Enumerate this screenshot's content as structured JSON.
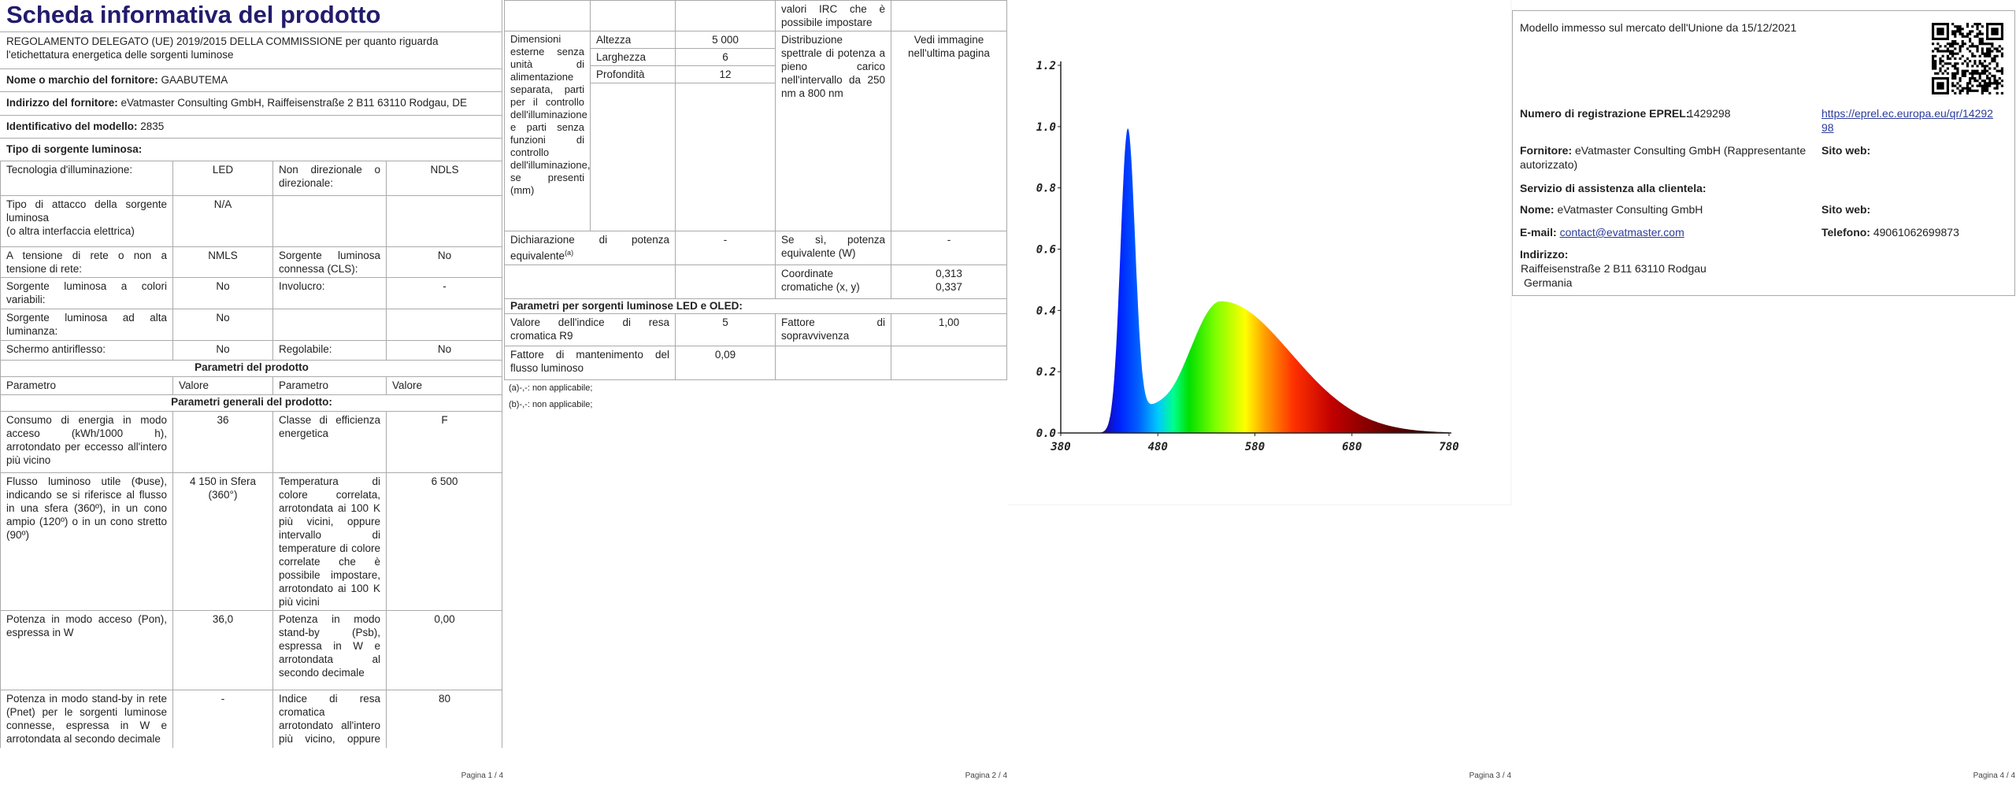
{
  "page1": {
    "title": "Scheda informativa del prodotto",
    "regulation": "REGOLAMENTO DELEGATO (UE) 2019/2015 DELLA COMMISSIONE per quanto riguarda l'etichettatura energetica delle sorgenti luminose",
    "supplier_name": {
      "label": "Nome o marchio del fornitore:",
      "value": "GAABUTEMA"
    },
    "supplier_address": {
      "label": "Indirizzo del fornitore:",
      "value": "eVatmaster Consulting GmbH, Raiffeisenstraße 2 B11 63110 Rodgau, DE"
    },
    "model": {
      "label": "Identificativo del modello:",
      "value": "2835"
    },
    "source_type": "Tipo di sorgente luminosa:",
    "features": [
      [
        "Tecnologia d'illuminazione:",
        "LED",
        "Non direzionale o direzionale:",
        "NDLS"
      ],
      [
        "Tipo di attacco della sorgente luminosa\n(o altra interfaccia elettrica)",
        "N/A",
        null,
        null
      ],
      [
        "A tensione di rete o non a tensione di rete:",
        "NMLS",
        "Sorgente luminosa connessa (CLS):",
        "No"
      ],
      [
        "Sorgente luminosa a colori variabili:",
        "No",
        "Involucro:",
        "-"
      ],
      [
        "Sorgente luminosa ad alta luminanza:",
        "No",
        null,
        null
      ],
      [
        "Schermo antiriflesso:",
        "No",
        "Regolabile:",
        "No"
      ]
    ],
    "parameters": {
      "title": "Parametri del prodotto",
      "header": [
        "Parametro",
        "Valore",
        "Parametro",
        "Valore"
      ],
      "general": "Parametri generali del prodotto:",
      "rows": [
        [
          "Consumo di energia in modo acceso (kWh/1000 h), arrotondato per eccesso all'intero più vicino",
          "36",
          "Classe di efficienza energetica",
          "F"
        ],
        [
          "Flusso luminoso utile (Φuse), indicando se si riferisce al flusso in una sfera (360º), in un cono ampio (120º) o in un cono stretto (90º)",
          "4 150 in Sfera (360°)",
          "Temperatura di colore correlata, arrotondata ai 100 K più vicini, oppure intervallo di temperature di colore correlate che è possibile impostare, arrotondato ai 100 K più vicini",
          "6 500"
        ],
        [
          "Potenza in modo acceso (Pon), espressa in W",
          "36,0",
          "Potenza in modo stand-by (Psb), espressa in W e arrotondata al secondo decimale",
          "0,00"
        ],
        [
          "Potenza in modo stand-by in rete (Pnet) per le sorgenti luminose connesse, espressa in W e arrotondata al secondo decimale",
          "-",
          "Indice di resa cromatica arrotondato all'intero più vicino, oppure intervallo di",
          "80"
        ]
      ]
    },
    "footer": "Pagina 1 / 4"
  },
  "page2": {
    "top_note": "valori IRC che è possibile impostare",
    "dimensions": {
      "label": "Dimensioni esterne senza unità di alimentazione separata, parti per il controllo dell'illuminazione e parti senza funzioni di controllo dell'illuminazione, se presenti (mm)",
      "items": [
        {
          "name": "Altezza",
          "value": "5 000"
        },
        {
          "name": "Larghezza",
          "value": "6"
        },
        {
          "name": "Profondità",
          "value": "12"
        }
      ]
    },
    "spectral": {
      "label": "Distribuzione spettrale di potenza a pieno carico nell'intervallo da 250 nm a 800 nm",
      "value": "Vedi immagine nell'ultima pagina"
    },
    "equivalent": {
      "label": "Dichiarazione di potenza equivalente",
      "note": "(a)",
      "value": "-",
      "label2": "Se sì, potenza equivalente (W)",
      "value2": "-"
    },
    "chromaticity": {
      "label": "Coordinate cromatiche (x, y)",
      "x": "0,313",
      "y": "0,337"
    },
    "led_section": "Parametri per sorgenti luminose LED e OLED:",
    "r9": {
      "label": "Valore dell'indice di resa cromatica R9",
      "value": "5"
    },
    "survival": {
      "label": "Fattore di sopravvivenza",
      "value": "1,00"
    },
    "maintenance": {
      "label": "Fattore di mantenimento del flusso luminoso",
      "value": "0,09"
    },
    "notes": [
      "(a)-,-: non applicabile;",
      "(b)-,-: non applicabile;"
    ],
    "footer": "Pagina 2 / 4"
  },
  "page3": {
    "y_labels": [
      "0.0",
      "0.2",
      "0.4",
      "0.6",
      "0.8",
      "1.0",
      "1.2"
    ],
    "x_labels": [
      "380",
      "480",
      "580",
      "680",
      "780"
    ],
    "footer": "Pagina 3 / 4"
  },
  "page4": {
    "market_date": "Modello immesso sul mercato dell'Unione da 15/12/2021",
    "eprel": {
      "label": "Numero di registrazione EPREL:",
      "value": "1429298",
      "link": "https://eprel.ec.europa.eu/qr/1429298"
    },
    "supplier": {
      "label": "Fornitore:",
      "value": "eVatmaster Consulting GmbH (Rappresentante autorizzato)",
      "web_label": "Sito web:"
    },
    "service": "Servizio di assistenza alla clientela:",
    "contact_name": {
      "label": "Nome:",
      "value": "eVatmaster Consulting GmbH",
      "web_label": "Sito web:"
    },
    "email": {
      "label": "E-mail:",
      "value": "contact@evatmaster.com"
    },
    "phone": {
      "label": "Telefono:",
      "value": "49061062699873"
    },
    "address": {
      "label": "Indirizzo:",
      "lines": [
        "Raiffeisenstraße 2 B11 63110 Rodgau",
        "Germania"
      ]
    },
    "footer": "Pagina 4 / 4"
  }
}
